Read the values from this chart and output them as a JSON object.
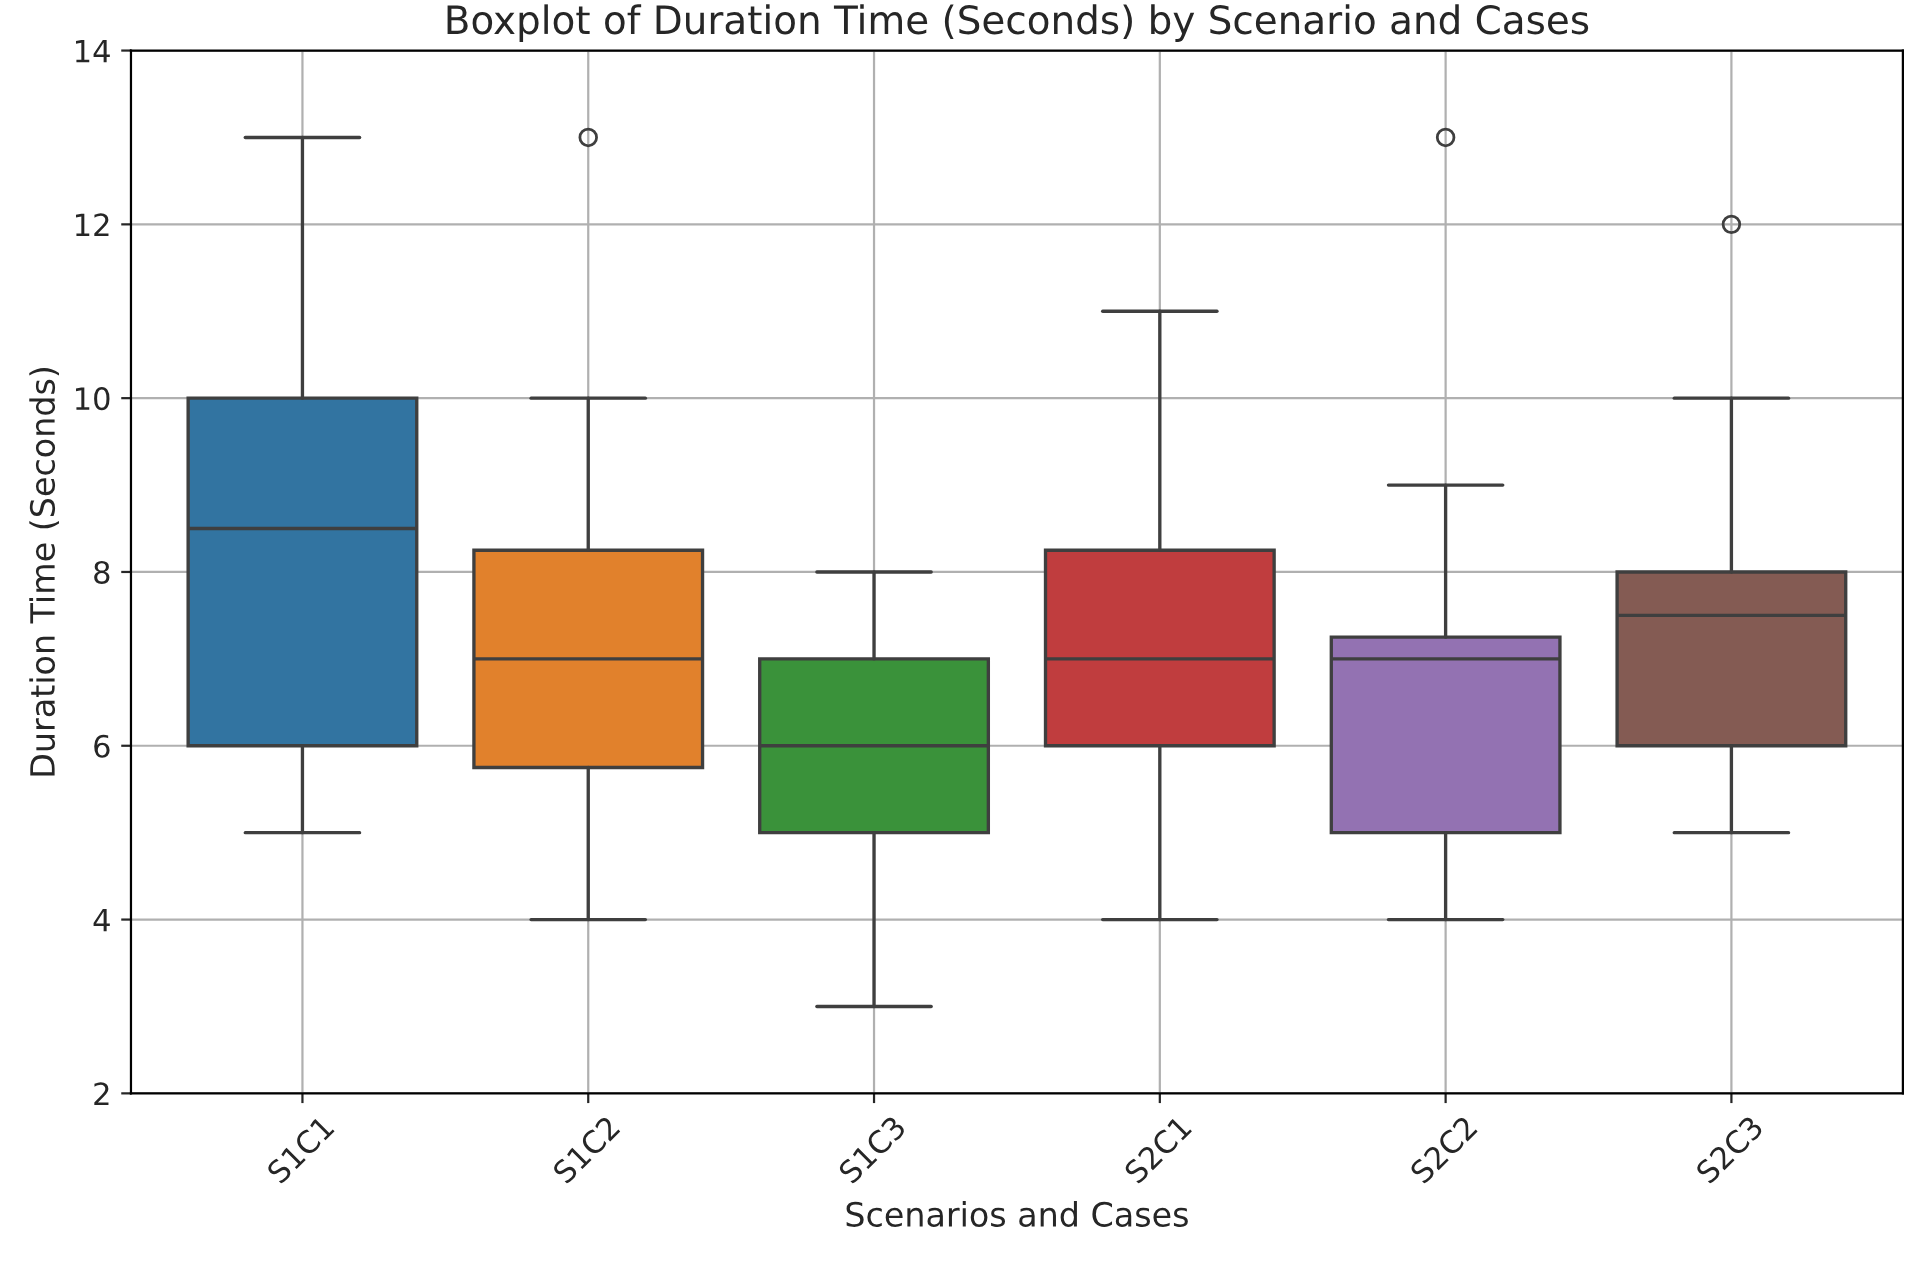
{
  "chart_data": {
    "type": "box",
    "title": "Boxplot of Duration Time (Seconds) by Scenario and Cases",
    "xlabel": "Scenarios and Cases",
    "ylabel": "Duration Time (Seconds)",
    "categories": [
      "S1C1",
      "S1C2",
      "S1C3",
      "S2C1",
      "S2C2",
      "S2C3"
    ],
    "colors": [
      "#3274a1",
      "#e1812c",
      "#3a923a",
      "#c03d3e",
      "#9372b2",
      "#845b53"
    ],
    "boxes": [
      {
        "low": 5,
        "q1": 6,
        "median": 8.5,
        "q3": 10,
        "high": 13
      },
      {
        "low": 4,
        "q1": 5.75,
        "median": 7,
        "q3": 8.25,
        "high": 10,
        "outliers": [
          13
        ]
      },
      {
        "low": 3,
        "q1": 5,
        "median": 6,
        "q3": 7,
        "high": 8
      },
      {
        "low": 4,
        "q1": 6,
        "median": 7,
        "q3": 8.25,
        "high": 11
      },
      {
        "low": 4,
        "q1": 5,
        "median": 7,
        "q3": 7.25,
        "high": 9,
        "outliers": [
          13
        ]
      },
      {
        "low": 5,
        "q1": 6,
        "median": 7.5,
        "q3": 8,
        "high": 10,
        "outliers": [
          12
        ]
      }
    ],
    "ylim": [
      2,
      14
    ],
    "yticks": [
      2,
      4,
      6,
      8,
      10,
      12,
      14
    ],
    "grid": true
  }
}
